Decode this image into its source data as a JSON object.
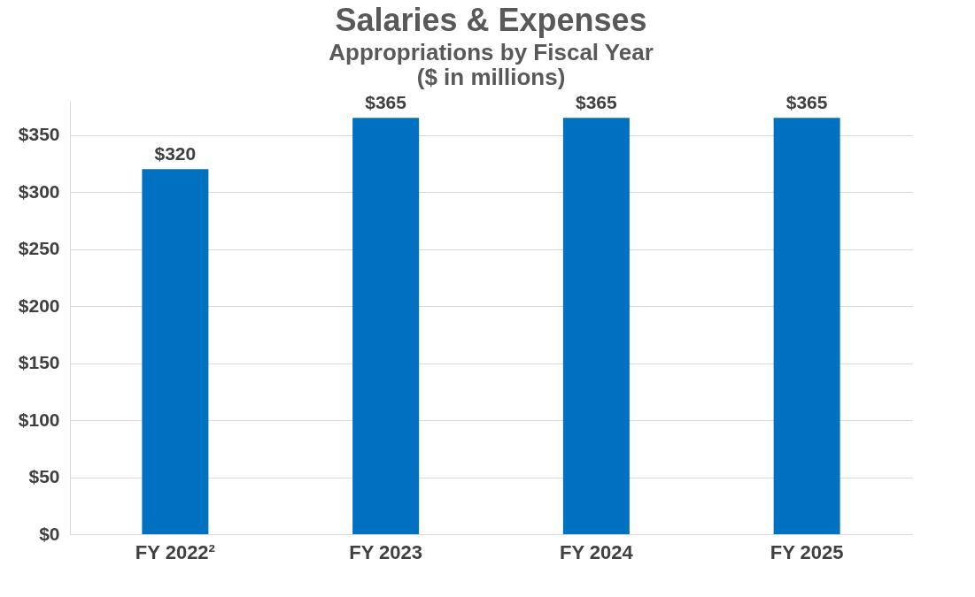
{
  "chart_data": {
    "type": "bar",
    "title": "Salaries & Expenses",
    "subtitle": "Appropriations by Fiscal Year",
    "annotations": [
      "($ in millions)"
    ],
    "categories": [
      "FY 2022²",
      "FY 2023",
      "FY 2024",
      "FY 2025"
    ],
    "values": [
      320,
      365,
      365,
      365
    ],
    "color": "#0070c0",
    "ylim": [
      0,
      380
    ],
    "yticks": [
      {
        "value": 0,
        "label": "$0"
      },
      {
        "value": 50,
        "label": "$50"
      },
      {
        "value": 100,
        "label": "$100"
      },
      {
        "value": 150,
        "label": "$150"
      },
      {
        "value": 200,
        "label": "$200"
      },
      {
        "value": 250,
        "label": "$250"
      },
      {
        "value": 300,
        "label": "$300"
      },
      {
        "value": 350,
        "label": "$350"
      }
    ],
    "value_labels": [
      "$320",
      "$365",
      "$365",
      "$365"
    ],
    "grid": "y"
  }
}
